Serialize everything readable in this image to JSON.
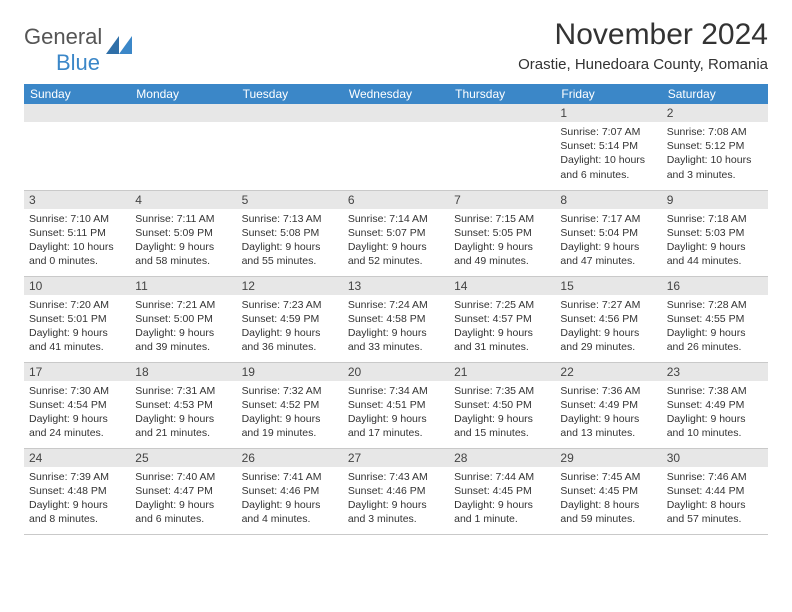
{
  "brand": {
    "general": "General",
    "blue": "Blue"
  },
  "header": {
    "month_title": "November 2024",
    "location": "Orastie, Hunedoara County, Romania"
  },
  "colors": {
    "header_bg": "#3b87c8",
    "header_fg": "#ffffff",
    "daynum_bg": "#e7e7e7",
    "border": "#c9c9c9",
    "text": "#333333"
  },
  "calendar": {
    "type": "table",
    "columns": [
      "Sunday",
      "Monday",
      "Tuesday",
      "Wednesday",
      "Thursday",
      "Friday",
      "Saturday"
    ],
    "weeks": [
      [
        null,
        null,
        null,
        null,
        null,
        {
          "n": "1",
          "sunrise": "7:07 AM",
          "sunset": "5:14 PM",
          "daylight": "10 hours and 6 minutes."
        },
        {
          "n": "2",
          "sunrise": "7:08 AM",
          "sunset": "5:12 PM",
          "daylight": "10 hours and 3 minutes."
        }
      ],
      [
        {
          "n": "3",
          "sunrise": "7:10 AM",
          "sunset": "5:11 PM",
          "daylight": "10 hours and 0 minutes."
        },
        {
          "n": "4",
          "sunrise": "7:11 AM",
          "sunset": "5:09 PM",
          "daylight": "9 hours and 58 minutes."
        },
        {
          "n": "5",
          "sunrise": "7:13 AM",
          "sunset": "5:08 PM",
          "daylight": "9 hours and 55 minutes."
        },
        {
          "n": "6",
          "sunrise": "7:14 AM",
          "sunset": "5:07 PM",
          "daylight": "9 hours and 52 minutes."
        },
        {
          "n": "7",
          "sunrise": "7:15 AM",
          "sunset": "5:05 PM",
          "daylight": "9 hours and 49 minutes."
        },
        {
          "n": "8",
          "sunrise": "7:17 AM",
          "sunset": "5:04 PM",
          "daylight": "9 hours and 47 minutes."
        },
        {
          "n": "9",
          "sunrise": "7:18 AM",
          "sunset": "5:03 PM",
          "daylight": "9 hours and 44 minutes."
        }
      ],
      [
        {
          "n": "10",
          "sunrise": "7:20 AM",
          "sunset": "5:01 PM",
          "daylight": "9 hours and 41 minutes."
        },
        {
          "n": "11",
          "sunrise": "7:21 AM",
          "sunset": "5:00 PM",
          "daylight": "9 hours and 39 minutes."
        },
        {
          "n": "12",
          "sunrise": "7:23 AM",
          "sunset": "4:59 PM",
          "daylight": "9 hours and 36 minutes."
        },
        {
          "n": "13",
          "sunrise": "7:24 AM",
          "sunset": "4:58 PM",
          "daylight": "9 hours and 33 minutes."
        },
        {
          "n": "14",
          "sunrise": "7:25 AM",
          "sunset": "4:57 PM",
          "daylight": "9 hours and 31 minutes."
        },
        {
          "n": "15",
          "sunrise": "7:27 AM",
          "sunset": "4:56 PM",
          "daylight": "9 hours and 29 minutes."
        },
        {
          "n": "16",
          "sunrise": "7:28 AM",
          "sunset": "4:55 PM",
          "daylight": "9 hours and 26 minutes."
        }
      ],
      [
        {
          "n": "17",
          "sunrise": "7:30 AM",
          "sunset": "4:54 PM",
          "daylight": "9 hours and 24 minutes."
        },
        {
          "n": "18",
          "sunrise": "7:31 AM",
          "sunset": "4:53 PM",
          "daylight": "9 hours and 21 minutes."
        },
        {
          "n": "19",
          "sunrise": "7:32 AM",
          "sunset": "4:52 PM",
          "daylight": "9 hours and 19 minutes."
        },
        {
          "n": "20",
          "sunrise": "7:34 AM",
          "sunset": "4:51 PM",
          "daylight": "9 hours and 17 minutes."
        },
        {
          "n": "21",
          "sunrise": "7:35 AM",
          "sunset": "4:50 PM",
          "daylight": "9 hours and 15 minutes."
        },
        {
          "n": "22",
          "sunrise": "7:36 AM",
          "sunset": "4:49 PM",
          "daylight": "9 hours and 13 minutes."
        },
        {
          "n": "23",
          "sunrise": "7:38 AM",
          "sunset": "4:49 PM",
          "daylight": "9 hours and 10 minutes."
        }
      ],
      [
        {
          "n": "24",
          "sunrise": "7:39 AM",
          "sunset": "4:48 PM",
          "daylight": "9 hours and 8 minutes."
        },
        {
          "n": "25",
          "sunrise": "7:40 AM",
          "sunset": "4:47 PM",
          "daylight": "9 hours and 6 minutes."
        },
        {
          "n": "26",
          "sunrise": "7:41 AM",
          "sunset": "4:46 PM",
          "daylight": "9 hours and 4 minutes."
        },
        {
          "n": "27",
          "sunrise": "7:43 AM",
          "sunset": "4:46 PM",
          "daylight": "9 hours and 3 minutes."
        },
        {
          "n": "28",
          "sunrise": "7:44 AM",
          "sunset": "4:45 PM",
          "daylight": "9 hours and 1 minute."
        },
        {
          "n": "29",
          "sunrise": "7:45 AM",
          "sunset": "4:45 PM",
          "daylight": "8 hours and 59 minutes."
        },
        {
          "n": "30",
          "sunrise": "7:46 AM",
          "sunset": "4:44 PM",
          "daylight": "8 hours and 57 minutes."
        }
      ]
    ],
    "labels": {
      "sunrise": "Sunrise:",
      "sunset": "Sunset:",
      "daylight": "Daylight:"
    }
  }
}
